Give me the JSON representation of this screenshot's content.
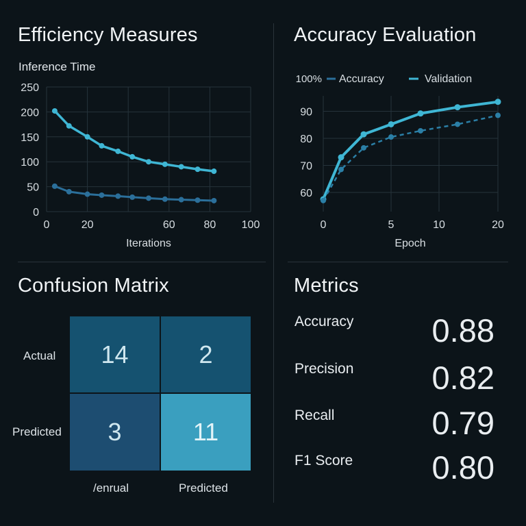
{
  "panels": {
    "efficiency": {
      "title": "Efficiency Measures"
    },
    "accuracy": {
      "title": "Accuracy Evaluation"
    },
    "confusion": {
      "title": "Confusion Matrix"
    },
    "metrics": {
      "title": "Metrics"
    }
  },
  "metrics": [
    {
      "label": "Accuracy",
      "value": "0.88"
    },
    {
      "label": "Precision",
      "value": "0.82"
    },
    {
      "label": "Recall",
      "value": "0.79"
    },
    {
      "label": "F1 Score",
      "value": "0.80"
    }
  ],
  "colors": {
    "background": "#0c1419",
    "series_light": "#3fb6d4",
    "series_dark": "#2b6f9a",
    "cell_dark": "#155270",
    "cell_mid": "#1d4d71",
    "cell_light": "#3a9fbf"
  },
  "chart_data": [
    {
      "type": "line",
      "title": "Inference Time",
      "xlabel": "Iterations",
      "ylabel": "",
      "xlim": [
        0,
        100
      ],
      "ylim": [
        0,
        250
      ],
      "xticks": [
        0,
        20,
        60,
        80,
        100
      ],
      "yticks": [
        0,
        50,
        100,
        150,
        200,
        250
      ],
      "grid": true,
      "series": [
        {
          "x": [
            4,
            11,
            20,
            27,
            35,
            42,
            50,
            58,
            66,
            74,
            82
          ],
          "values": [
            202,
            172,
            150,
            132,
            121,
            110,
            100,
            95,
            90,
            85,
            81
          ]
        },
        {
          "x": [
            4,
            11,
            20,
            27,
            35,
            42,
            50,
            58,
            66,
            74,
            82
          ],
          "values": [
            51,
            40,
            35,
            33,
            31,
            29,
            27,
            25,
            24,
            23,
            22
          ]
        }
      ]
    },
    {
      "type": "line",
      "title": "",
      "xlabel": "Epoch",
      "ylabel": "",
      "xlim": [
        0,
        20
      ],
      "ylim": [
        55,
        100
      ],
      "ytick_labels": [
        "100%",
        "90",
        "80",
        "70",
        "60"
      ],
      "yticks": [
        100,
        90,
        80,
        70,
        60
      ],
      "xticks": [
        0,
        5,
        10,
        20
      ],
      "legend": "top",
      "grid": true,
      "series": [
        {
          "name": "Accuracy",
          "style": "solid",
          "x": [
            0,
            1,
            2,
            3,
            4,
            5,
            6
          ],
          "values": [
            57.5,
            73,
            81.5,
            85.2,
            89.2,
            91.5,
            93.5
          ]
        },
        {
          "name": "Validation",
          "style": "dashed",
          "x": [
            0,
            1,
            2,
            3,
            4,
            5,
            6
          ],
          "values": [
            57,
            68.5,
            76.5,
            80.5,
            82.8,
            85.2,
            88.5
          ]
        }
      ]
    },
    {
      "type": "heatmap",
      "row_labels": [
        "Actual",
        "Predicted"
      ],
      "col_labels": [
        "/enrual",
        "Predicted"
      ],
      "values": [
        [
          14,
          2
        ],
        [
          3,
          11
        ]
      ]
    }
  ]
}
